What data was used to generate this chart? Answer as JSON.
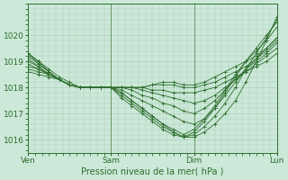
{
  "background_color": "#cce8d8",
  "line_color": "#2d6e2d",
  "marker_color": "#2d6e2d",
  "grid_color": "#aacfba",
  "tick_color": "#2d6e2d",
  "label_color": "#2d6e2d",
  "xlabel": "Pression niveau de la mer( hPa )",
  "ylim": [
    1015.5,
    1021.2
  ],
  "yticks": [
    1016,
    1017,
    1018,
    1019,
    1020
  ],
  "xtick_labels": [
    "Ven",
    "Sam",
    "Dim",
    "Lun"
  ],
  "xtick_positions": [
    0,
    48,
    96,
    144
  ],
  "total_hours": 144,
  "series": [
    {
      "x": [
        0,
        6,
        12,
        18,
        24,
        30,
        36,
        42,
        48,
        54,
        60,
        66,
        72,
        78,
        84,
        90,
        96,
        102,
        108,
        114,
        120,
        126,
        132,
        138,
        144
      ],
      "y": [
        1019.3,
        1019.0,
        1018.6,
        1018.3,
        1018.1,
        1018.0,
        1018.0,
        1018.0,
        1018.0,
        1017.8,
        1017.5,
        1017.2,
        1016.9,
        1016.6,
        1016.3,
        1016.1,
        1016.1,
        1016.3,
        1016.6,
        1017.0,
        1017.5,
        1018.2,
        1019.0,
        1019.8,
        1020.7
      ]
    },
    {
      "x": [
        0,
        6,
        12,
        18,
        24,
        30,
        36,
        42,
        48,
        54,
        60,
        66,
        72,
        78,
        84,
        90,
        96,
        102,
        108,
        114,
        120,
        126,
        132,
        138,
        144
      ],
      "y": [
        1019.2,
        1018.9,
        1018.6,
        1018.3,
        1018.1,
        1018.0,
        1018.0,
        1018.0,
        1018.0,
        1017.7,
        1017.4,
        1017.1,
        1016.8,
        1016.5,
        1016.3,
        1016.1,
        1016.2,
        1016.5,
        1016.9,
        1017.4,
        1018.0,
        1018.7,
        1019.3,
        1019.9,
        1020.6
      ]
    },
    {
      "x": [
        0,
        6,
        12,
        18,
        24,
        30,
        36,
        42,
        48,
        54,
        60,
        66,
        72,
        78,
        84,
        90,
        96,
        102,
        108,
        114,
        120,
        126,
        132,
        138,
        144
      ],
      "y": [
        1019.1,
        1018.8,
        1018.5,
        1018.3,
        1018.1,
        1018.0,
        1018.0,
        1018.0,
        1018.0,
        1017.6,
        1017.3,
        1017.0,
        1016.7,
        1016.4,
        1016.2,
        1016.1,
        1016.3,
        1016.7,
        1017.2,
        1017.8,
        1018.4,
        1019.0,
        1019.5,
        1020.0,
        1020.5
      ]
    },
    {
      "x": [
        0,
        6,
        12,
        18,
        24,
        30,
        36,
        42,
        48,
        54,
        60,
        66,
        72,
        78,
        84,
        90,
        96,
        102,
        108,
        114,
        120,
        126,
        132,
        138,
        144
      ],
      "y": [
        1019.0,
        1018.8,
        1018.5,
        1018.3,
        1018.1,
        1018.0,
        1018.0,
        1018.0,
        1018.0,
        1017.8,
        1017.5,
        1017.2,
        1016.9,
        1016.6,
        1016.4,
        1016.2,
        1016.4,
        1016.8,
        1017.3,
        1017.9,
        1018.5,
        1019.0,
        1019.4,
        1019.8,
        1020.3
      ]
    },
    {
      "x": [
        0,
        6,
        12,
        18,
        24,
        30,
        36,
        42,
        48,
        54,
        60,
        66,
        72,
        78,
        84,
        90,
        96,
        102,
        108,
        114,
        120,
        126,
        132,
        138,
        144
      ],
      "y": [
        1018.9,
        1018.7,
        1018.5,
        1018.3,
        1018.1,
        1018.0,
        1018.0,
        1018.0,
        1018.0,
        1017.9,
        1017.7,
        1017.5,
        1017.3,
        1017.1,
        1016.9,
        1016.7,
        1016.6,
        1016.8,
        1017.2,
        1017.7,
        1018.2,
        1018.7,
        1019.1,
        1019.5,
        1019.9
      ]
    },
    {
      "x": [
        0,
        6,
        12,
        18,
        24,
        30,
        36,
        42,
        48,
        54,
        60,
        66,
        72,
        78,
        84,
        90,
        96,
        102,
        108,
        114,
        120,
        126,
        132,
        138,
        144
      ],
      "y": [
        1018.8,
        1018.7,
        1018.5,
        1018.3,
        1018.1,
        1018.0,
        1018.0,
        1018.0,
        1018.0,
        1018.0,
        1017.9,
        1017.7,
        1017.6,
        1017.4,
        1017.3,
        1017.1,
        1017.0,
        1017.2,
        1017.5,
        1017.9,
        1018.3,
        1018.7,
        1019.0,
        1019.3,
        1019.7
      ]
    },
    {
      "x": [
        0,
        6,
        12,
        18,
        24,
        30,
        36,
        42,
        48,
        54,
        60,
        66,
        72,
        78,
        84,
        90,
        96,
        102,
        108,
        114,
        120,
        126,
        132,
        138,
        144
      ],
      "y": [
        1018.7,
        1018.6,
        1018.5,
        1018.3,
        1018.1,
        1018.0,
        1018.0,
        1018.0,
        1018.0,
        1018.0,
        1018.0,
        1017.9,
        1017.8,
        1017.7,
        1017.6,
        1017.5,
        1017.4,
        1017.5,
        1017.7,
        1018.0,
        1018.3,
        1018.6,
        1018.9,
        1019.2,
        1019.5
      ]
    },
    {
      "x": [
        0,
        6,
        12,
        18,
        24,
        30,
        36,
        42,
        48,
        54,
        60,
        66,
        72,
        78,
        84,
        90,
        96,
        102,
        108,
        114,
        120,
        126,
        132,
        138,
        144
      ],
      "y": [
        1018.6,
        1018.5,
        1018.4,
        1018.3,
        1018.1,
        1018.0,
        1018.0,
        1018.0,
        1018.0,
        1018.0,
        1018.0,
        1018.0,
        1017.9,
        1017.9,
        1017.8,
        1017.8,
        1017.8,
        1017.9,
        1018.0,
        1018.2,
        1018.4,
        1018.6,
        1018.8,
        1019.0,
        1019.3
      ]
    },
    {
      "x": [
        0,
        6,
        12,
        18,
        24,
        30,
        36,
        42,
        48,
        54,
        60,
        66,
        72,
        78,
        84,
        90,
        96,
        102,
        108,
        114,
        120,
        126,
        132,
        138,
        144
      ],
      "y": [
        1019.3,
        1018.9,
        1018.6,
        1018.3,
        1018.1,
        1018.0,
        1018.0,
        1018.0,
        1018.0,
        1018.0,
        1018.0,
        1018.0,
        1018.1,
        1018.1,
        1018.1,
        1018.0,
        1018.0,
        1018.1,
        1018.2,
        1018.4,
        1018.6,
        1018.8,
        1019.1,
        1019.4,
        1019.8
      ]
    },
    {
      "x": [
        0,
        6,
        12,
        18,
        24,
        30,
        36,
        42,
        48,
        54,
        60,
        66,
        72,
        78,
        84,
        90,
        96,
        102,
        108,
        114,
        120,
        126,
        132,
        138,
        144
      ],
      "y": [
        1019.3,
        1019.0,
        1018.7,
        1018.4,
        1018.2,
        1018.0,
        1018.0,
        1018.0,
        1018.0,
        1018.0,
        1018.0,
        1018.0,
        1018.1,
        1018.2,
        1018.2,
        1018.1,
        1018.1,
        1018.2,
        1018.4,
        1018.6,
        1018.8,
        1019.0,
        1019.2,
        1019.5,
        1019.9
      ]
    }
  ]
}
